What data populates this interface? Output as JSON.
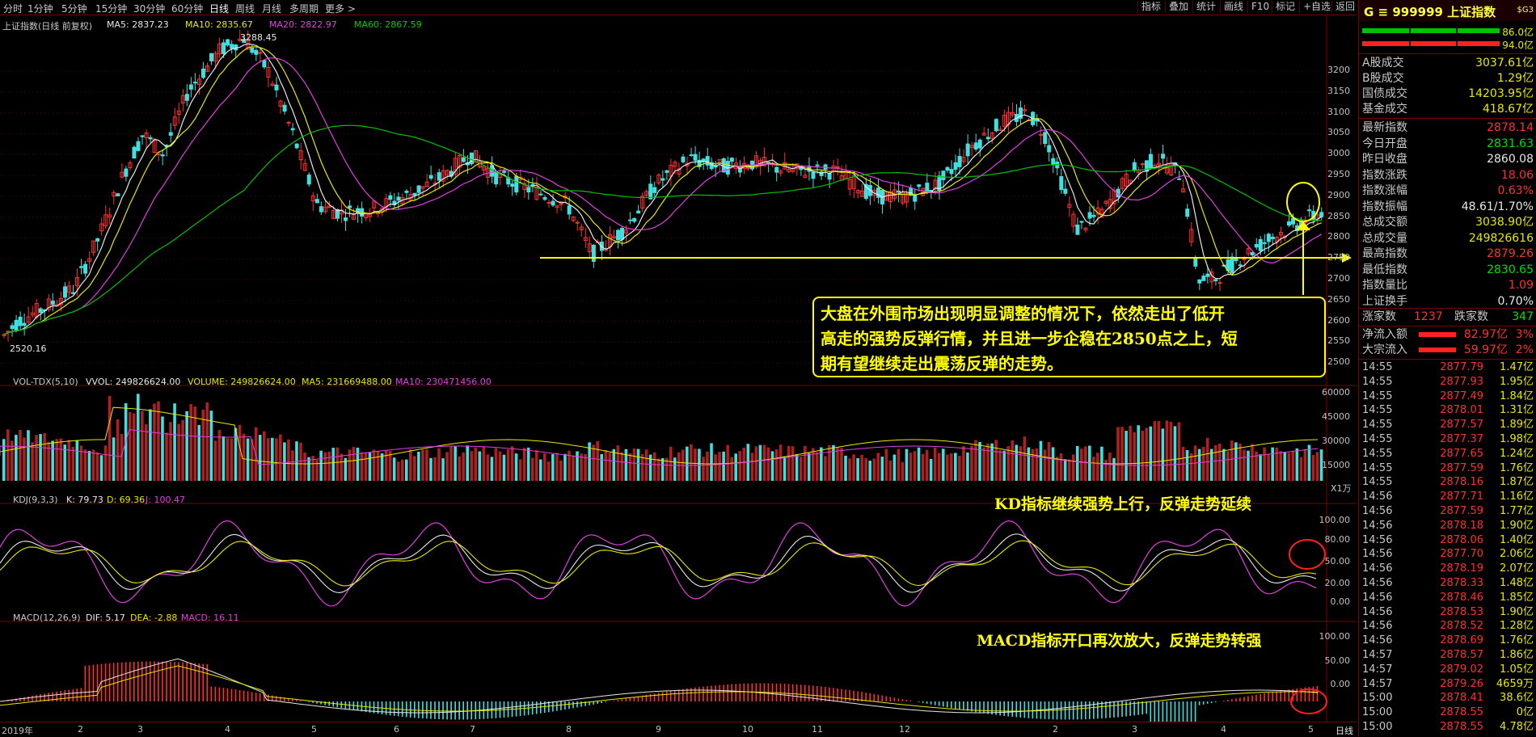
{
  "toolbar": {
    "timeframes": [
      "分时",
      "1分钟",
      "5分钟",
      "15分钟",
      "30分钟",
      "60分钟",
      "日线",
      "周线",
      "月线",
      "多周期",
      "更多 >"
    ],
    "buttons": [
      "指标",
      "叠加",
      "统计",
      "画线",
      "F10",
      "标记",
      "+自选",
      "返回"
    ]
  },
  "main_chart": {
    "title": "上证指数(日线 前复权)",
    "ma5": "MA5: 2837.23",
    "ma10": "MA10: 2835.67",
    "ma20": "MA20: 2822.97",
    "ma60": "MA60: 2867.59",
    "high_label": "3288.45",
    "low_label": "2520.16",
    "price_axis": [
      "3200",
      "3150",
      "3100",
      "3050",
      "3000",
      "2950",
      "2900",
      "2850",
      "2800",
      "2750",
      "2700",
      "2650",
      "2600",
      "2550",
      "2500"
    ],
    "callout": [
      "大盘在外围市场出现明显调整的情况下，依然走出了低开",
      "高走的强势反弹行情，并且进一步企稳在2850点之上，短",
      "期有望继续走出震荡反弹的走势。"
    ]
  },
  "volume_chart": {
    "title": "VOL-TDX(5,10)",
    "vvol": "VVOL: 249826624.00",
    "volume": "VOLUME: 249826624.00",
    "ma5": "MA5: 231669488.00",
    "ma10": "MA10: 230471456.00",
    "axis": [
      "60000",
      "45000",
      "30000",
      "15000"
    ],
    "unit": "X1万"
  },
  "kdj_chart": {
    "title": "KDJ(9,3,3)",
    "k": "K: 79.73",
    "d": "D: 69.36",
    "j": "J: 100.47",
    "axis": [
      "100.00",
      "80.00",
      "50.00",
      "20.00",
      "0.00"
    ],
    "annotation": "KD指标继续强势上行，反弹走势延续"
  },
  "macd_chart": {
    "title": "MACD(12,26,9)",
    "dif": "DIF: 5.17",
    "dea": "DEA: -2.88",
    "macd": "MACD: 16.11",
    "axis": [
      "100.00",
      "50.00",
      "0.00"
    ],
    "annotation": "MACD指标开口再次放大，反弹走势转强"
  },
  "x_axis": {
    "labels": [
      "2019年",
      "2",
      "3",
      "4",
      "5",
      "6",
      "7",
      "8",
      "9",
      "10",
      "11",
      "12",
      "2",
      "3",
      "4",
      "5"
    ],
    "period_label": "日线"
  },
  "right_panel": {
    "header": {
      "code": "G ≡ 999999 上证指数",
      "tag": "$G3"
    },
    "bars": [
      "86.0亿",
      "94.0亿"
    ],
    "turnover": [
      {
        "label": "A股成交",
        "value": "3037.61亿"
      },
      {
        "label": "B股成交",
        "value": "1.29亿"
      },
      {
        "label": "国债成交",
        "value": "14203.95亿"
      },
      {
        "label": "基金成交",
        "value": "418.67亿"
      }
    ],
    "stats": [
      {
        "label": "最新指数",
        "value": "2878.14",
        "color": "#ff3030"
      },
      {
        "label": "今日开盘",
        "value": "2831.63",
        "color": "#00e000"
      },
      {
        "label": "昨日收盘",
        "value": "2860.08",
        "color": "#e8e8e8"
      },
      {
        "label": "指数涨跌",
        "value": "18.06",
        "color": "#ff3030"
      },
      {
        "label": "指数涨幅",
        "value": "0.63%",
        "color": "#ff3030"
      },
      {
        "label": "指数振幅",
        "value": "48.61/1.70%",
        "color": "#e8e8e8"
      },
      {
        "label": "总成交额",
        "value": "3038.90亿",
        "color": "#e8e800"
      },
      {
        "label": "总成交量",
        "value": "249826616",
        "color": "#e8e800"
      },
      {
        "label": "最高指数",
        "value": "2879.26",
        "color": "#ff3030"
      },
      {
        "label": "最低指数",
        "value": "2830.65",
        "color": "#00e000"
      },
      {
        "label": "指数量比",
        "value": "1.09",
        "color": "#ff3030"
      },
      {
        "label": "上证换手",
        "value": "0.70%",
        "color": "#e8e8e8"
      }
    ],
    "breadth": {
      "up_label": "涨家数",
      "up": "1237",
      "down_label": "跌家数",
      "down": "347"
    },
    "flows": [
      {
        "label": "净流入额",
        "value": "82.97亿",
        "pct": "3%"
      },
      {
        "label": "大宗流入",
        "value": "59.97亿",
        "pct": "2%"
      }
    ],
    "ticks": [
      {
        "time": "14:55",
        "price": "2877.79",
        "vol": "1.47亿"
      },
      {
        "time": "14:55",
        "price": "2877.93",
        "vol": "1.95亿"
      },
      {
        "time": "14:55",
        "price": "2877.49",
        "vol": "1.84亿"
      },
      {
        "time": "14:55",
        "price": "2878.01",
        "vol": "1.31亿"
      },
      {
        "time": "14:55",
        "price": "2877.57",
        "vol": "1.89亿"
      },
      {
        "time": "14:55",
        "price": "2877.37",
        "vol": "1.98亿"
      },
      {
        "time": "14:55",
        "price": "2877.65",
        "vol": "1.24亿"
      },
      {
        "time": "14:55",
        "price": "2877.59",
        "vol": "1.76亿"
      },
      {
        "time": "14:55",
        "price": "2878.16",
        "vol": "1.87亿"
      },
      {
        "time": "14:56",
        "price": "2877.71",
        "vol": "1.16亿"
      },
      {
        "time": "14:56",
        "price": "2877.59",
        "vol": "1.77亿"
      },
      {
        "time": "14:56",
        "price": "2878.18",
        "vol": "1.90亿"
      },
      {
        "time": "14:56",
        "price": "2878.06",
        "vol": "1.40亿"
      },
      {
        "time": "14:56",
        "price": "2877.70",
        "vol": "2.06亿"
      },
      {
        "time": "14:56",
        "price": "2878.19",
        "vol": "2.07亿"
      },
      {
        "time": "14:56",
        "price": "2878.33",
        "vol": "1.48亿"
      },
      {
        "time": "14:56",
        "price": "2878.46",
        "vol": "1.85亿"
      },
      {
        "time": "14:56",
        "price": "2878.53",
        "vol": "1.90亿"
      },
      {
        "time": "14:56",
        "price": "2878.52",
        "vol": "1.28亿"
      },
      {
        "time": "14:56",
        "price": "2878.69",
        "vol": "1.76亿"
      },
      {
        "time": "14:57",
        "price": "2878.57",
        "vol": "1.86亿"
      },
      {
        "time": "14:57",
        "price": "2879.02",
        "vol": "1.05亿"
      },
      {
        "time": "14:57",
        "price": "2879.26",
        "vol": "4659万"
      },
      {
        "time": "15:00",
        "price": "2878.41",
        "vol": "38.6亿"
      },
      {
        "time": "15:00",
        "price": "2878.55",
        "vol": "0亿"
      },
      {
        "time": "15:00",
        "price": "2878.55",
        "vol": "4.78亿"
      }
    ]
  }
}
